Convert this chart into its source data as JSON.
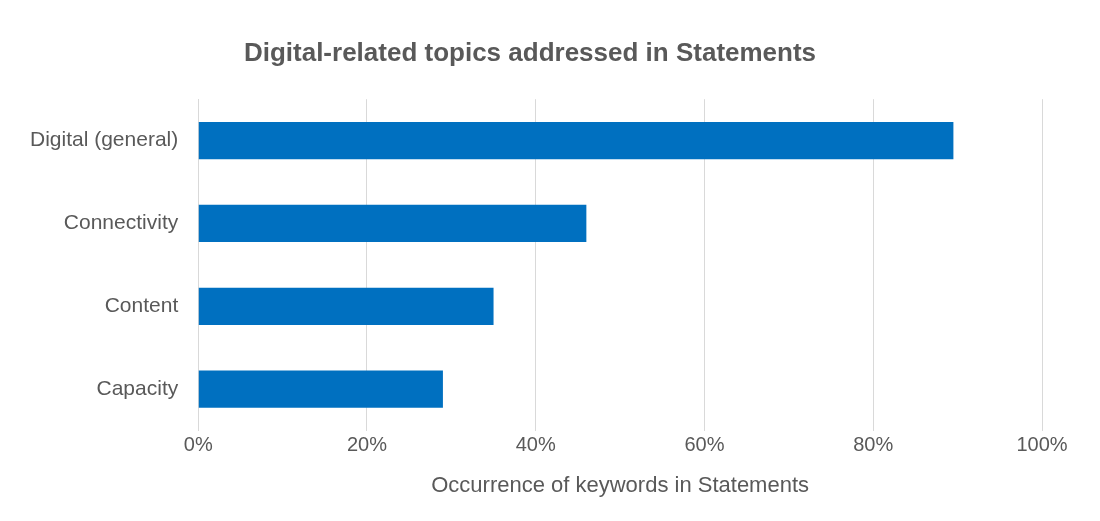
{
  "chart_data": {
    "type": "bar",
    "orientation": "horizontal",
    "title": "Digital-related topics addressed in Statements",
    "categories": [
      "Digital (general)",
      "Connectivity",
      "Content",
      "Capacity"
    ],
    "values": [
      89.5,
      46,
      35,
      29
    ],
    "color": "#0070c0",
    "xlabel": "Occurrence of keywords in Statements",
    "xlim": [
      0,
      100
    ],
    "xticks": [
      {
        "value": 0,
        "label": "0%"
      },
      {
        "value": 20,
        "label": "20%"
      },
      {
        "value": 40,
        "label": "40%"
      },
      {
        "value": 60,
        "label": "60%"
      },
      {
        "value": 80,
        "label": "80%"
      },
      {
        "value": 100,
        "label": "100%"
      }
    ],
    "grid": "x",
    "legend": false
  }
}
